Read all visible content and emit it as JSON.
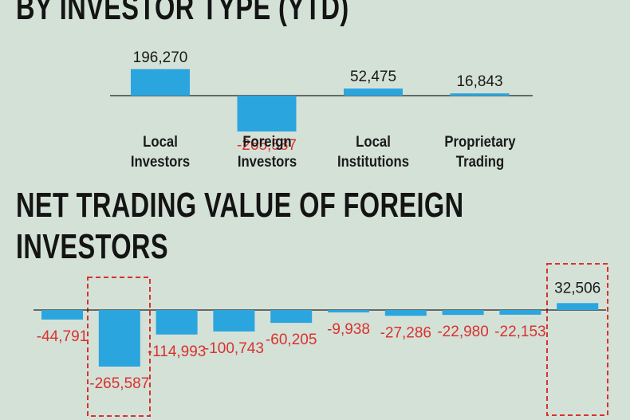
{
  "chart_data": [
    {
      "type": "bar",
      "title": "BY INVESTOR TYPE (YTD)",
      "categories": [
        "Local Investors",
        "Foreign Investors",
        "Local Institutions",
        "Proprietary Trading"
      ],
      "values": [
        196270,
        -265587,
        52475,
        16843
      ],
      "value_labels": [
        "196,270",
        "-265,587",
        "52,475",
        "16,843"
      ],
      "color": "#2ba5de"
    },
    {
      "type": "bar",
      "title": "NET TRADING VALUE OF FOREIGN INVESTORS",
      "values": [
        -44791,
        -265587,
        -114993,
        -100743,
        -60205,
        -9938,
        -27286,
        -22980,
        -22153,
        32506
      ],
      "value_labels": [
        "-44,791",
        "-265,587",
        "-114,993",
        "-100,743",
        "-60,205",
        "-9,938",
        "-27,286",
        "-22,980",
        "-22,153",
        "32,506"
      ],
      "color": "#2ba5de"
    }
  ]
}
